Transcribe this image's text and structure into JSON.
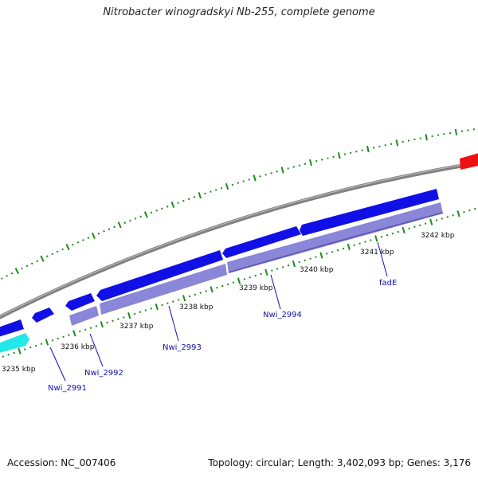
{
  "title": "Nitrobacter winogradskyi Nb-255, complete genome",
  "footer": {
    "accession": "Accession: NC_007406",
    "summary": "Topology: circular; Length: 3,402,093 bp; Genes: 3,176"
  },
  "colors": {
    "backbone": "#7f7f7f",
    "forward_gene": "#1010e6",
    "reverse_gene": "#8a86d8",
    "highlight_gene_cyan": "#22e8e8",
    "highlight_gene_red": "#ee1111",
    "gc_ticks": "#1e8a1e",
    "label_text": "#1010aa"
  },
  "scale_labels": [
    "3235 kbp",
    "3236 kbp",
    "3237 kbp",
    "3238 kbp",
    "3239 kbp",
    "3240 kbp",
    "3241 kbp",
    "3242 kbp"
  ],
  "gene_labels": [
    "Nwi_2991",
    "Nwi_2992",
    "Nwi_2993",
    "Nwi_2994",
    "fadE"
  ]
}
